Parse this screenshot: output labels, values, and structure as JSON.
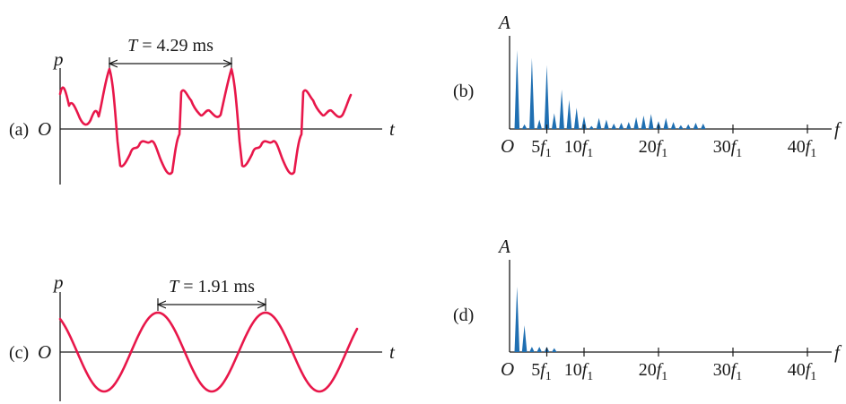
{
  "panels": {
    "a": {
      "label": "(a)",
      "y_axis_label": "p",
      "x_axis_label": "t",
      "origin_label": "O",
      "period_label": "T = 4.29 ms",
      "period_var": "T",
      "period_value": "= 4.29 ms"
    },
    "b": {
      "label": "(b)",
      "y_axis_label": "A",
      "x_axis_label": "f",
      "origin_label": "O",
      "tick_labels": [
        {
          "coef": "5",
          "var": "f",
          "sub": "1"
        },
        {
          "coef": "10",
          "var": "f",
          "sub": "1"
        },
        {
          "coef": "20",
          "var": "f",
          "sub": "1"
        },
        {
          "coef": "30",
          "var": "f",
          "sub": "1"
        },
        {
          "coef": "40",
          "var": "f",
          "sub": "1"
        }
      ]
    },
    "c": {
      "label": "(c)",
      "y_axis_label": "p",
      "x_axis_label": "t",
      "origin_label": "O",
      "period_label": "T = 1.91 ms",
      "period_var": "T",
      "period_value": "= 1.91 ms"
    },
    "d": {
      "label": "(d)",
      "y_axis_label": "A",
      "x_axis_label": "f",
      "origin_label": "O",
      "tick_labels": [
        {
          "coef": "5",
          "var": "f",
          "sub": "1"
        },
        {
          "coef": "10",
          "var": "f",
          "sub": "1"
        },
        {
          "coef": "20",
          "var": "f",
          "sub": "1"
        },
        {
          "coef": "30",
          "var": "f",
          "sub": "1"
        },
        {
          "coef": "40",
          "var": "f",
          "sub": "1"
        }
      ]
    }
  },
  "colors": {
    "waveform": "#e8174a",
    "spectrum": "#1f6fb2",
    "axes": "#1a1a1a"
  },
  "spectra": {
    "b": {
      "harmonic_range": [
        0,
        40
      ],
      "amplitudes": [
        {
          "n": 1,
          "a": 1.0
        },
        {
          "n": 2,
          "a": 0.06
        },
        {
          "n": 3,
          "a": 0.9
        },
        {
          "n": 4,
          "a": 0.12
        },
        {
          "n": 5,
          "a": 0.81
        },
        {
          "n": 6,
          "a": 0.2
        },
        {
          "n": 7,
          "a": 0.5
        },
        {
          "n": 8,
          "a": 0.37
        },
        {
          "n": 9,
          "a": 0.27
        },
        {
          "n": 10,
          "a": 0.16
        },
        {
          "n": 11,
          "a": 0.04
        },
        {
          "n": 12,
          "a": 0.14
        },
        {
          "n": 13,
          "a": 0.12
        },
        {
          "n": 14,
          "a": 0.07
        },
        {
          "n": 15,
          "a": 0.08
        },
        {
          "n": 16,
          "a": 0.09
        },
        {
          "n": 17,
          "a": 0.15
        },
        {
          "n": 18,
          "a": 0.17
        },
        {
          "n": 19,
          "a": 0.19
        },
        {
          "n": 20,
          "a": 0.1
        },
        {
          "n": 21,
          "a": 0.14
        },
        {
          "n": 22,
          "a": 0.09
        },
        {
          "n": 23,
          "a": 0.05
        },
        {
          "n": 24,
          "a": 0.06
        },
        {
          "n": 25,
          "a": 0.08
        },
        {
          "n": 26,
          "a": 0.07
        }
      ]
    },
    "d": {
      "harmonic_range": [
        0,
        40
      ],
      "amplitudes": [
        {
          "n": 1,
          "a": 1.0
        },
        {
          "n": 2,
          "a": 0.41
        },
        {
          "n": 3,
          "a": 0.08
        },
        {
          "n": 4,
          "a": 0.08
        },
        {
          "n": 5,
          "a": 0.08
        },
        {
          "n": 6,
          "a": 0.06
        }
      ]
    }
  }
}
